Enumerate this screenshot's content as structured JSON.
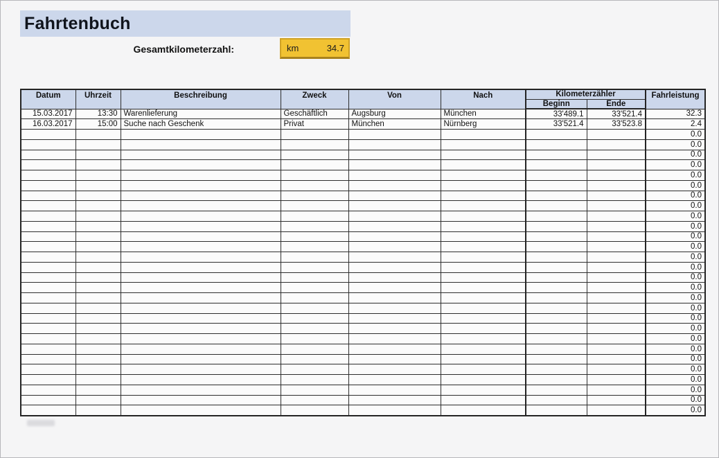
{
  "title": "Fahrtenbuch",
  "summary": {
    "label": "Gesamtkilometerzahl:",
    "unit": "km",
    "value": "34.7"
  },
  "table": {
    "headers": {
      "datum": "Datum",
      "uhrzeit": "Uhrzeit",
      "beschreibung": "Beschreibung",
      "zweck": "Zweck",
      "von": "Von",
      "nach": "Nach",
      "kilometerzaehler": "Kilometerzähler",
      "beginn": "Beginn",
      "ende": "Ende",
      "fahrleistung": "Fahrleistung"
    },
    "rows": [
      {
        "datum": "15.03.2017",
        "uhrzeit": "13:30",
        "beschreibung": "Warenlieferung",
        "zweck": "Geschäftlich",
        "von": "Augsburg",
        "nach": "München",
        "beginn": "33'489.1",
        "ende": "33'521.4",
        "fahrleistung": "32.3"
      },
      {
        "datum": "16.03.2017",
        "uhrzeit": "15:00",
        "beschreibung": "Suche nach Geschenk",
        "zweck": "Privat",
        "von": "München",
        "nach": "Nürnberg",
        "beginn": "33'521.4",
        "ende": "33'523.8",
        "fahrleistung": "2.4"
      }
    ],
    "empty_row_count": 28,
    "empty_fahrleistung": "0.0"
  },
  "colors": {
    "banner_blue": "#ccd7eb",
    "header_blue": "#ccd7eb",
    "cell_yellow": "#f1c232",
    "yellow_border": "#cfa226",
    "grid": "#2d2d2d",
    "page_bg": "#f5f5f6"
  }
}
